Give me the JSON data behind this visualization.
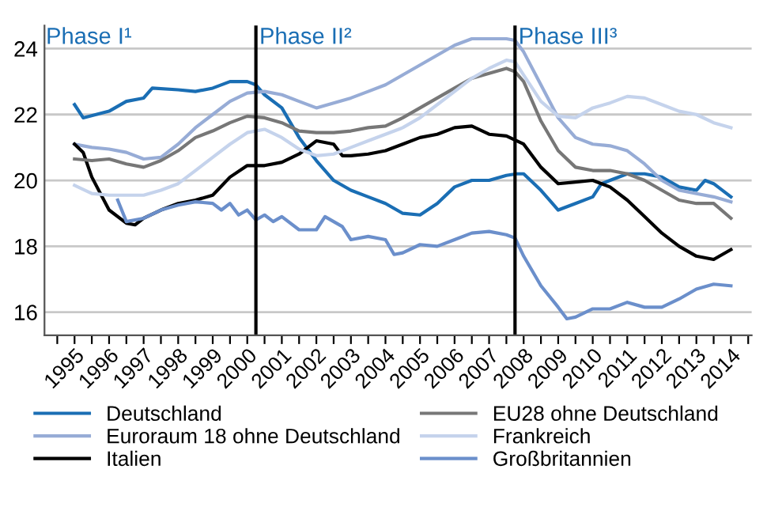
{
  "chart_data": {
    "type": "line",
    "xlim": [
      1994.13,
      2014.6
    ],
    "ylim": [
      15.3,
      24.7
    ],
    "yticks": [
      16,
      18,
      20,
      22,
      24
    ],
    "xticks": [
      {
        "value": 1994.5,
        "label": null
      },
      {
        "value": 1995,
        "label": "1995"
      },
      {
        "value": 1995.5,
        "label": null
      },
      {
        "value": 1996,
        "label": "1996"
      },
      {
        "value": 1996.5,
        "label": null
      },
      {
        "value": 1997,
        "label": "1997"
      },
      {
        "value": 1997.5,
        "label": null
      },
      {
        "value": 1998,
        "label": "1998"
      },
      {
        "value": 1998.5,
        "label": null
      },
      {
        "value": 1999,
        "label": "1999"
      },
      {
        "value": 1999.5,
        "label": null
      },
      {
        "value": 2000,
        "label": "2000"
      },
      {
        "value": 2000.5,
        "label": null
      },
      {
        "value": 2001,
        "label": "2001"
      },
      {
        "value": 2001.5,
        "label": null
      },
      {
        "value": 2002,
        "label": "2002"
      },
      {
        "value": 2002.5,
        "label": null
      },
      {
        "value": 2003,
        "label": "2003"
      },
      {
        "value": 2003.5,
        "label": null
      },
      {
        "value": 2004,
        "label": "2004"
      },
      {
        "value": 2004.5,
        "label": null
      },
      {
        "value": 2005,
        "label": "2005"
      },
      {
        "value": 2005.5,
        "label": null
      },
      {
        "value": 2006,
        "label": "2006"
      },
      {
        "value": 2006.5,
        "label": null
      },
      {
        "value": 2007,
        "label": "2007"
      },
      {
        "value": 2007.5,
        "label": null
      },
      {
        "value": 2008,
        "label": "2008"
      },
      {
        "value": 2008.5,
        "label": null
      },
      {
        "value": 2009,
        "label": "2009"
      },
      {
        "value": 2009.5,
        "label": null
      },
      {
        "value": 2010,
        "label": "2010"
      },
      {
        "value": 2010.5,
        "label": null
      },
      {
        "value": 2011,
        "label": "2011"
      },
      {
        "value": 2011.5,
        "label": null
      },
      {
        "value": 2012,
        "label": "2012"
      },
      {
        "value": 2012.5,
        "label": null
      },
      {
        "value": 2013,
        "label": "2013"
      },
      {
        "value": 2013.5,
        "label": null
      },
      {
        "value": 2014,
        "label": "2014"
      },
      {
        "value": 2014.5,
        "label": null
      }
    ],
    "grid": "y",
    "legend": "bottom",
    "marker": "none",
    "line_style": "solid",
    "annotations": [
      "Phase I¹"
    ],
    "ref_lines": [
      {
        "axis": "x",
        "value": 2000.25,
        "label": "Phase II²",
        "color": "#000000"
      },
      {
        "axis": "x",
        "value": 2007.75,
        "label": "Phase III³",
        "color": "#000000"
      }
    ],
    "series": [
      {
        "name": "Deutschland",
        "color": "#1a6eb4",
        "x": [
          1995,
          1995.25,
          1996,
          1996.5,
          1997,
          1997.25,
          1998,
          1998.5,
          1999,
          1999.5,
          2000,
          2000.25,
          2000.5,
          2001,
          2001.5,
          2002,
          2002.5,
          2003,
          2003.5,
          2004,
          2004.5,
          2005,
          2005.5,
          2006,
          2006.5,
          2007,
          2007.5,
          2007.8,
          2008,
          2008.5,
          2009,
          2009.5,
          2010,
          2010.25,
          2010.5,
          2011,
          2011.5,
          2012,
          2012.5,
          2013,
          2013.25,
          2013.5,
          2014
        ],
        "values": [
          22.3,
          21.9,
          22.1,
          22.4,
          22.5,
          22.8,
          22.75,
          22.7,
          22.8,
          23.0,
          23.0,
          22.9,
          22.6,
          22.2,
          21.3,
          20.6,
          20.0,
          19.7,
          19.5,
          19.3,
          19.0,
          18.95,
          19.3,
          19.8,
          20.0,
          20.0,
          20.15,
          20.2,
          20.2,
          19.7,
          19.1,
          19.3,
          19.5,
          19.9,
          20.0,
          20.2,
          20.2,
          20.1,
          19.8,
          19.7,
          20.0,
          19.9,
          19.5
        ]
      },
      {
        "name": "Euroraum 18 ohne Deutschland",
        "color": "#97acd6",
        "x": [
          1995,
          1995.5,
          1996,
          1996.5,
          1997,
          1997.5,
          1998,
          1998.5,
          1999,
          1999.5,
          2000,
          2000.5,
          2001,
          2001.5,
          2002,
          2002.5,
          2003,
          2003.5,
          2004,
          2004.5,
          2005,
          2005.5,
          2006,
          2006.5,
          2007,
          2007.5,
          2007.75,
          2008,
          2008.5,
          2009,
          2009.5,
          2010,
          2010.5,
          2011,
          2011.5,
          2012,
          2012.5,
          2013,
          2013.5,
          2014
        ],
        "values": [
          21.1,
          21.0,
          20.95,
          20.85,
          20.65,
          20.7,
          21.1,
          21.6,
          22.0,
          22.4,
          22.65,
          22.7,
          22.6,
          22.4,
          22.2,
          22.35,
          22.5,
          22.7,
          22.9,
          23.2,
          23.5,
          23.8,
          24.1,
          24.3,
          24.3,
          24.3,
          24.25,
          23.9,
          22.9,
          21.9,
          21.3,
          21.1,
          21.05,
          20.9,
          20.5,
          20.0,
          19.7,
          19.6,
          19.5,
          19.35
        ]
      },
      {
        "name": "Italien",
        "color": "#000000",
        "x": [
          1995,
          1995.25,
          1995.5,
          1996,
          1996.5,
          1996.75,
          1997,
          1997.5,
          1998,
          1998.5,
          1999,
          1999.5,
          2000,
          2000.5,
          2001,
          2001.5,
          2002,
          2002.5,
          2002.75,
          2003,
          2003.5,
          2004,
          2004.5,
          2005,
          2005.5,
          2006,
          2006.5,
          2007,
          2007.5,
          2008,
          2008.5,
          2009,
          2009.5,
          2010,
          2010.5,
          2011,
          2011.5,
          2012,
          2012.5,
          2013,
          2013.5,
          2014
        ],
        "values": [
          21.1,
          20.85,
          20.1,
          19.1,
          18.7,
          18.65,
          18.85,
          19.1,
          19.3,
          19.4,
          19.55,
          20.1,
          20.45,
          20.45,
          20.55,
          20.8,
          21.2,
          21.1,
          20.75,
          20.75,
          20.8,
          20.9,
          21.1,
          21.3,
          21.4,
          21.6,
          21.65,
          21.4,
          21.35,
          21.1,
          20.4,
          19.9,
          19.95,
          20.0,
          19.8,
          19.4,
          18.9,
          18.4,
          18.0,
          17.7,
          17.6,
          17.9
        ]
      },
      {
        "name": "EU28 ohne Deutschland",
        "color": "#777777",
        "x": [
          1995,
          1995.5,
          1996,
          1996.5,
          1997,
          1997.5,
          1998,
          1998.5,
          1999,
          1999.5,
          2000,
          2000.5,
          2001,
          2001.5,
          2002,
          2002.5,
          2003,
          2003.5,
          2004,
          2004.5,
          2005,
          2005.5,
          2006,
          2006.5,
          2007,
          2007.5,
          2007.75,
          2008,
          2008.5,
          2009,
          2009.5,
          2010,
          2010.5,
          2011,
          2011.5,
          2012,
          2012.5,
          2013,
          2013.5,
          2014
        ],
        "values": [
          20.65,
          20.6,
          20.65,
          20.5,
          20.4,
          20.6,
          20.9,
          21.3,
          21.5,
          21.75,
          21.95,
          21.9,
          21.75,
          21.5,
          21.45,
          21.45,
          21.5,
          21.6,
          21.65,
          21.9,
          22.2,
          22.5,
          22.8,
          23.1,
          23.25,
          23.4,
          23.3,
          23.0,
          21.8,
          20.9,
          20.4,
          20.3,
          20.3,
          20.2,
          20.0,
          19.7,
          19.4,
          19.3,
          19.3,
          18.85
        ]
      },
      {
        "name": "Frankreich",
        "color": "#c5d3ec",
        "x": [
          1995,
          1995.5,
          1996,
          1996.5,
          1997,
          1997.5,
          1998,
          1998.5,
          1999,
          1999.5,
          2000,
          2000.5,
          2001,
          2001.5,
          2002,
          2002.5,
          2003,
          2003.5,
          2004,
          2004.5,
          2005,
          2005.5,
          2006,
          2006.5,
          2007,
          2007.5,
          2007.75,
          2008,
          2008.5,
          2009,
          2009.5,
          2010,
          2010.5,
          2011,
          2011.5,
          2012,
          2012.5,
          2013,
          2013.5,
          2014
        ],
        "values": [
          19.85,
          19.6,
          19.55,
          19.55,
          19.55,
          19.7,
          19.9,
          20.3,
          20.7,
          21.1,
          21.45,
          21.55,
          21.3,
          20.95,
          20.75,
          20.8,
          21.0,
          21.2,
          21.4,
          21.6,
          21.9,
          22.3,
          22.7,
          23.1,
          23.4,
          23.65,
          23.6,
          23.2,
          22.4,
          21.95,
          21.9,
          22.2,
          22.35,
          22.55,
          22.5,
          22.3,
          22.1,
          22.0,
          21.75,
          21.6
        ]
      },
      {
        "name": "Großbritannien",
        "color": "#6b8fcb",
        "x": [
          1996.25,
          1996.5,
          1997,
          1997.5,
          1998,
          1998.5,
          1999,
          1999.25,
          1999.5,
          1999.75,
          2000,
          2000.25,
          2000.5,
          2000.75,
          2001,
          2001.5,
          2002,
          2002.25,
          2002.75,
          2003,
          2003.5,
          2004,
          2004.25,
          2004.5,
          2005,
          2005.5,
          2006,
          2006.5,
          2007,
          2007.5,
          2007.75,
          2008,
          2008.5,
          2009,
          2009.25,
          2009.5,
          2010,
          2010.5,
          2011,
          2011.5,
          2012,
          2012.5,
          2013,
          2013.5,
          2014
        ],
        "values": [
          19.4,
          18.75,
          18.85,
          19.1,
          19.25,
          19.35,
          19.3,
          19.1,
          19.3,
          18.95,
          19.1,
          18.8,
          18.95,
          18.75,
          18.9,
          18.5,
          18.5,
          18.9,
          18.6,
          18.2,
          18.3,
          18.2,
          17.75,
          17.8,
          18.05,
          18.0,
          18.2,
          18.4,
          18.45,
          18.35,
          18.25,
          17.7,
          16.8,
          16.15,
          15.8,
          15.85,
          16.1,
          16.1,
          16.3,
          16.15,
          16.15,
          16.4,
          16.7,
          16.85,
          16.8
        ]
      }
    ]
  }
}
